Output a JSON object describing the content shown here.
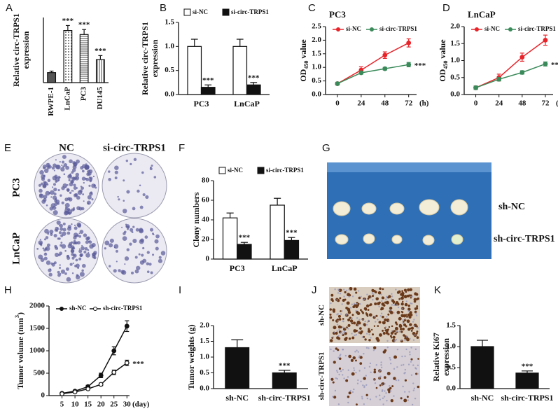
{
  "chart_data": [
    {
      "panel": "A",
      "type": "bar",
      "ylabel": [
        "Relative circ-TRPS1",
        "expression"
      ],
      "categories": [
        "RWPE-1",
        "LnCaP",
        "PC3",
        "DU145"
      ],
      "values": [
        1.0,
        5.2,
        4.8,
        2.3
      ],
      "errors": [
        0.15,
        0.5,
        0.5,
        0.4
      ],
      "patterns": [
        "solid",
        "dots",
        "hlines",
        "vlines"
      ],
      "color": "#555555",
      "xtick_rotation": 90,
      "ylim": [
        0,
        6.5
      ],
      "annotations": [
        {
          "text": "***",
          "index": 1
        },
        {
          "text": "***",
          "index": 2
        },
        {
          "text": "***",
          "index": 3
        }
      ]
    },
    {
      "panel": "B",
      "type": "bar",
      "ylabel": [
        "Relative circ-TRPS1",
        "expression"
      ],
      "categories": [
        "PC3",
        "LnCaP"
      ],
      "series": [
        {
          "name": "si-NC",
          "color": "#ffffff",
          "values": [
            1.0,
            1.0
          ],
          "errors": [
            0.15,
            0.15
          ]
        },
        {
          "name": "si-circ-TRPS1",
          "color": "#111111",
          "values": [
            0.15,
            0.2
          ],
          "errors": [
            0.05,
            0.05
          ]
        }
      ],
      "ylim": [
        0,
        1.5
      ],
      "yticks": [
        {
          "value": 0,
          "label": "0.0"
        },
        0.5,
        {
          "value": 1,
          "label": "1.0"
        },
        1.5
      ],
      "annotations": [
        {
          "text": "***",
          "series": 1,
          "index": 0
        },
        {
          "text": "***",
          "series": 1,
          "index": 1
        }
      ]
    },
    {
      "panel": "C",
      "type": "line",
      "title": "PC3",
      "ylabel": [
        [
          "OD",
          "450",
          " value"
        ]
      ],
      "ylabel_shift": "sub",
      "xlabel": "(h)",
      "x": [
        0,
        24,
        48,
        72
      ],
      "series": [
        {
          "name": "si-NC",
          "color": "#e8242a",
          "marker": "filled",
          "values": [
            0.4,
            0.9,
            1.45,
            1.9
          ],
          "errors": [
            0.05,
            0.12,
            0.12,
            0.15
          ]
        },
        {
          "name": "si-circ-TRPS1",
          "color": "#3a8a5a",
          "marker": "filled",
          "values": [
            0.4,
            0.8,
            0.95,
            1.1
          ],
          "errors": [
            0.05,
            0.05,
            0.05,
            0.08
          ]
        }
      ],
      "xlim": [
        -12,
        80
      ],
      "xticks": [
        0,
        24,
        48,
        72
      ],
      "ylim": [
        0,
        2.5
      ],
      "yticks": [
        {
          "value": 0,
          "label": "0.0"
        },
        0.5,
        {
          "value": 1,
          "label": "1.0"
        },
        1.5,
        {
          "value": 2,
          "label": "2.0"
        },
        2.5
      ],
      "annotations": [
        {
          "text": "***",
          "series": 1,
          "index": 3
        }
      ]
    },
    {
      "panel": "D",
      "type": "line",
      "title": "LnCaP",
      "ylabel": [
        [
          "OD",
          "450",
          " value"
        ]
      ],
      "ylabel_shift": "sub",
      "xlabel": "(h)",
      "x": [
        0,
        24,
        48,
        72
      ],
      "series": [
        {
          "name": "si-NC",
          "color": "#e8242a",
          "marker": "filled",
          "values": [
            0.2,
            0.5,
            1.1,
            1.6
          ],
          "errors": [
            0.05,
            0.1,
            0.12,
            0.15
          ]
        },
        {
          "name": "si-circ-TRPS1",
          "color": "#3a8a5a",
          "marker": "filled",
          "values": [
            0.2,
            0.45,
            0.65,
            0.9
          ],
          "errors": [
            0.05,
            0.05,
            0.05,
            0.06
          ]
        }
      ],
      "xlim": [
        -12,
        80
      ],
      "xticks": [
        0,
        24,
        48,
        72
      ],
      "ylim": [
        0,
        2.0
      ],
      "yticks": [
        {
          "value": 0,
          "label": "0.0"
        },
        0.5,
        {
          "value": 1,
          "label": "1.0"
        },
        1.5,
        {
          "value": 2,
          "label": "2.0"
        }
      ],
      "annotations": [
        {
          "text": "***",
          "series": 1,
          "index": 3
        }
      ]
    },
    {
      "panel": "F",
      "type": "bar",
      "ylabel": [
        "Clony numbers"
      ],
      "categories": [
        "PC3",
        "LnCaP"
      ],
      "series": [
        {
          "name": "si-NC",
          "color": "#ffffff",
          "values": [
            42,
            55
          ],
          "errors": [
            5,
            7
          ]
        },
        {
          "name": "si-circ-TRPS1",
          "color": "#111111",
          "values": [
            15,
            19
          ],
          "errors": [
            2,
            3
          ]
        }
      ],
      "ylim": [
        0,
        80
      ],
      "yticks": [
        0,
        20,
        40,
        60,
        80
      ],
      "annotations": [
        {
          "text": "***",
          "series": 1,
          "index": 0
        },
        {
          "text": "***",
          "series": 1,
          "index": 1
        }
      ]
    },
    {
      "panel": "H",
      "type": "line",
      "ylabel": [
        [
          "Tumor volume (mm",
          "3",
          ")"
        ]
      ],
      "ylabel_shift": "super",
      "xlabel": "(day)",
      "x": [
        5,
        10,
        15,
        20,
        25,
        30
      ],
      "series": [
        {
          "name": "sh-NC",
          "color": "#111111",
          "marker": "filled",
          "values": [
            50,
            100,
            200,
            450,
            1000,
            1550
          ],
          "errors": [
            10,
            20,
            30,
            50,
            90,
            120
          ]
        },
        {
          "name": "sh-circ-TRPS1",
          "color": "#111111",
          "marker": "open",
          "values": [
            40,
            80,
            150,
            250,
            520,
            730
          ],
          "errors": [
            10,
            15,
            20,
            30,
            50,
            60
          ]
        }
      ],
      "xlim": [
        0,
        31
      ],
      "xticks": [
        5,
        10,
        15,
        20,
        25,
        30
      ],
      "ylim": [
        0,
        2000
      ],
      "yticks": [
        0,
        500,
        1000,
        1500,
        2000
      ],
      "annotations": [
        {
          "text": "***",
          "series": 1,
          "index": 5
        }
      ]
    },
    {
      "panel": "I",
      "type": "bar",
      "ylabel": [
        "Tumor weights (g)"
      ],
      "categories": [
        "sh-NC",
        "sh-circ-TRPS1"
      ],
      "values": [
        1.3,
        0.5
      ],
      "errors": [
        0.25,
        0.08
      ],
      "color": "#111111",
      "ylim": [
        0,
        2.0
      ],
      "yticks": [
        {
          "value": 0,
          "label": "0.0"
        },
        0.5,
        {
          "value": 1,
          "label": "1.0"
        },
        1.5,
        {
          "value": 2,
          "label": "2.0"
        }
      ],
      "annotations": [
        {
          "text": "***",
          "index": 1
        }
      ]
    },
    {
      "panel": "K",
      "type": "bar",
      "ylabel": [
        "Relative Ki67",
        "expression"
      ],
      "categories": [
        "sh-NC",
        "sh-circ-TRPS1"
      ],
      "values": [
        1.0,
        0.37
      ],
      "errors": [
        0.15,
        0.05
      ],
      "color": "#111111",
      "ylim": [
        0,
        1.5
      ],
      "yticks": [
        {
          "value": 0,
          "label": "0.0"
        },
        0.5,
        {
          "value": 1,
          "label": "1.0"
        },
        1.5
      ],
      "annotations": [
        {
          "text": "***",
          "index": 1
        }
      ]
    }
  ],
  "images": {
    "E": {
      "panel": "E",
      "columns": [
        "NC",
        "si-circ-TRPS1"
      ],
      "rows": [
        "PC3",
        "LnCaP"
      ]
    },
    "G": {
      "panel": "G",
      "rows": [
        "sh-NC",
        "sh-circ-TRPS1"
      ]
    },
    "J": {
      "panel": "J",
      "rows": [
        "sh-NC",
        "sh-circ-TRPS1"
      ]
    }
  }
}
